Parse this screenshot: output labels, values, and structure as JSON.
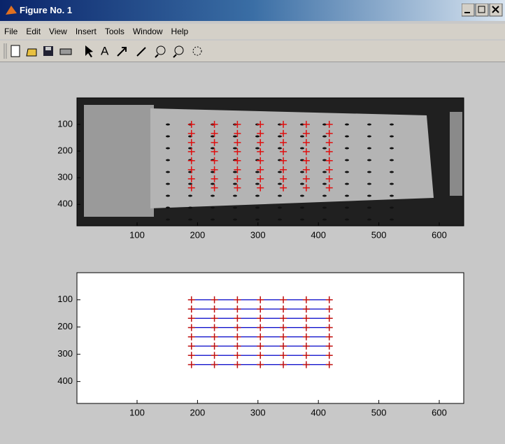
{
  "window": {
    "title": "Figure No. 1"
  },
  "menu": [
    "File",
    "Edit",
    "View",
    "Insert",
    "Tools",
    "Window",
    "Help"
  ],
  "chart_data": [
    {
      "type": "image",
      "xlim": [
        0.5,
        640.5
      ],
      "ylim": [
        0.5,
        480.5
      ],
      "xticks": [
        100,
        200,
        300,
        400,
        500,
        600
      ],
      "yticks": [
        100,
        200,
        300,
        400
      ],
      "grid_x": [
        190,
        228,
        266,
        304,
        342,
        380,
        418
      ],
      "grid_y": [
        100,
        134,
        168,
        202,
        236,
        270,
        304,
        338
      ],
      "marker_color": "#e01010"
    },
    {
      "type": "line",
      "xlim": [
        0.5,
        640.5
      ],
      "ylim": [
        0.5,
        480.5
      ],
      "xticks": [
        100,
        200,
        300,
        400,
        500,
        600
      ],
      "yticks": [
        100,
        200,
        300,
        400
      ],
      "grid_x": [
        190,
        228,
        266,
        304,
        342,
        380,
        418
      ],
      "grid_y": [
        100,
        134,
        168,
        202,
        236,
        270,
        304,
        338
      ],
      "color": "#0000c8",
      "marker_color": "#c01010"
    }
  ]
}
